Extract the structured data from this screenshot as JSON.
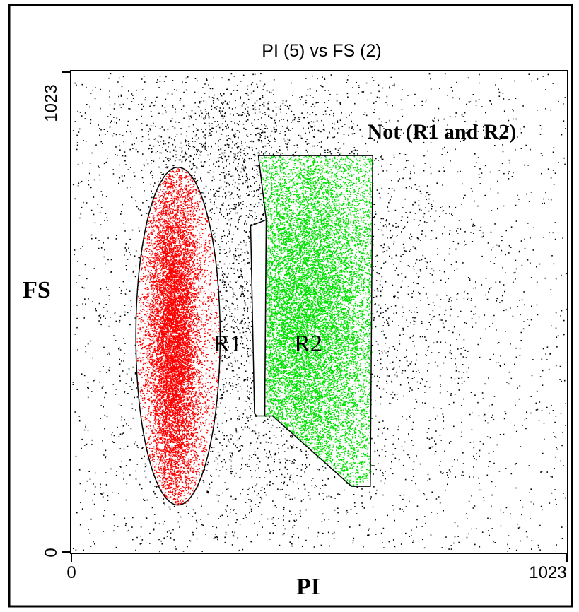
{
  "chart_data": {
    "type": "scatter",
    "title": "PI (5) vs FS (2)",
    "xlabel": "PI",
    "ylabel": "FS",
    "xlim": [
      0,
      1023
    ],
    "ylim": [
      0,
      1023
    ],
    "x_ticks": [
      "0",
      "1023"
    ],
    "y_ticks": [
      "0",
      "1023"
    ],
    "grid": false,
    "colors": {
      "background_events": "#000000",
      "R1": "#ff0000",
      "R2": "#00e000",
      "gap": "#ffffff"
    },
    "gates": [
      {
        "name": "R1",
        "label": "R1",
        "shape": "ellipse",
        "center": [
          220,
          460
        ],
        "radii": [
          87,
          360
        ],
        "color": "#ff0000"
      },
      {
        "name": "R2",
        "label": "R2",
        "shape": "polygon",
        "vertices": [
          [
            386,
            845
          ],
          [
            622,
            845
          ],
          [
            617,
            140
          ],
          [
            578,
            140
          ],
          [
            415,
            290
          ],
          [
            399,
            290
          ],
          [
            402,
            708
          ]
        ],
        "color": "#00e000"
      },
      {
        "name": "gap",
        "shape": "polygon",
        "vertices": [
          [
            370,
            695
          ],
          [
            402,
            708
          ],
          [
            399,
            290
          ],
          [
            382,
            290
          ],
          [
            378,
            295
          ]
        ],
        "color": "#ffffff"
      }
    ],
    "annotations": [
      {
        "text": "Not (R1 and R2)",
        "x": 780,
        "y": 922
      },
      {
        "text": "R1",
        "x": 208,
        "y": 452
      },
      {
        "text": "R2",
        "x": 425,
        "y": 452
      }
    ]
  }
}
